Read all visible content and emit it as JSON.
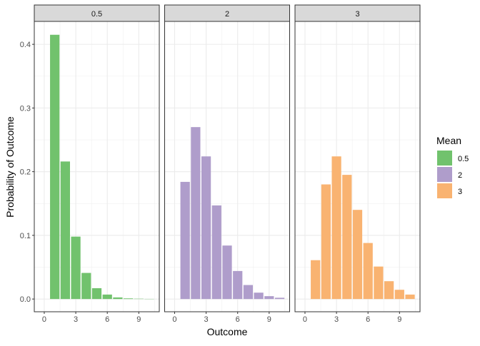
{
  "chart_data": {
    "type": "bar",
    "facet_by": "Mean",
    "xlabel": "Outcome",
    "ylabel": "Probability of Outcome",
    "xlim": [
      -0.95,
      10.95
    ],
    "ylim": [
      -0.02,
      0.436
    ],
    "x_ticks": [
      0,
      3,
      6,
      9
    ],
    "y_ticks": [
      0.0,
      0.1,
      0.2,
      0.3,
      0.4
    ],
    "y_tick_labels": [
      "0.0",
      "0.1",
      "0.2",
      "0.3",
      "0.4"
    ],
    "grid": true,
    "legend": {
      "title": "Mean",
      "placement": "right",
      "entries": [
        "0.5",
        "2",
        "3"
      ]
    },
    "x": [
      1,
      2,
      3,
      4,
      5,
      6,
      7,
      8,
      9,
      10
    ],
    "panels": [
      {
        "label": "0.5",
        "color": "#71C26D",
        "values": [
          0.415,
          0.216,
          0.098,
          0.041,
          0.017,
          0.007,
          0.0025,
          0.001,
          0.0005,
          0.0002
        ]
      },
      {
        "label": "2",
        "color": "#AF9DCB",
        "values": [
          0.184,
          0.27,
          0.224,
          0.147,
          0.084,
          0.044,
          0.022,
          0.01,
          0.0045,
          0.002
        ]
      },
      {
        "label": "3",
        "color": "#F9B371",
        "values": [
          0.061,
          0.18,
          0.224,
          0.195,
          0.14,
          0.088,
          0.051,
          0.028,
          0.0145,
          0.007
        ]
      }
    ]
  }
}
